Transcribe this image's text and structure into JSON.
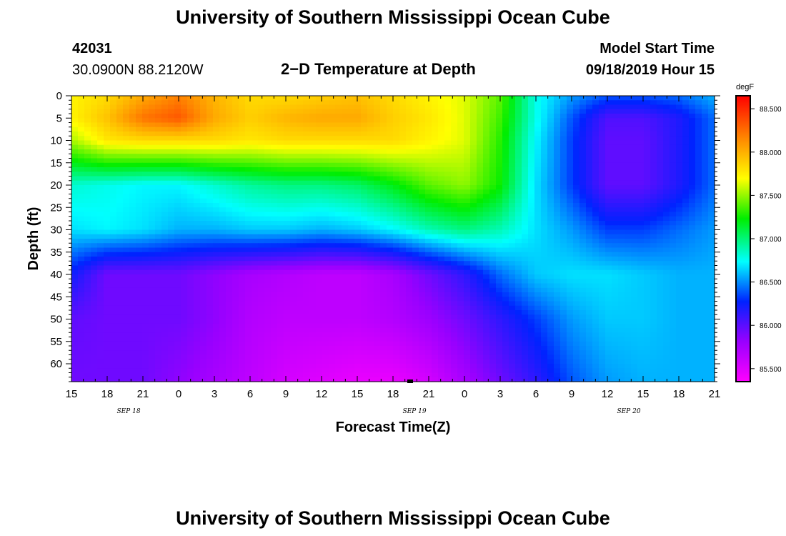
{
  "header": {
    "title_top": "University of Southern Mississippi Ocean Cube",
    "station_id": "42031",
    "location": "30.0900N 88.2120W",
    "plot_title": "2−D Temperature at Depth",
    "model_start_label": "Model Start Time",
    "model_start_value": "09/18/2019 Hour 15",
    "title_bottom": "University of Southern Mississippi Ocean Cube"
  },
  "chart_data": {
    "type": "heatmap",
    "title": "2−D Temperature at Depth",
    "xlabel": "Forecast Time(Z)",
    "ylabel": "Depth (ft)",
    "x_tick_labels": [
      "15",
      "18",
      "21",
      "0",
      "3",
      "6",
      "9",
      "12",
      "15",
      "18",
      "21",
      "0",
      "3",
      "6",
      "9",
      "12",
      "15",
      "18",
      "21"
    ],
    "date_labels": [
      "SEP 18",
      "SEP 19",
      "SEP 20"
    ],
    "y_tick_labels": [
      "0",
      "5",
      "10",
      "15",
      "20",
      "25",
      "30",
      "35",
      "40",
      "45",
      "50",
      "55",
      "60"
    ],
    "ylim": [
      0,
      64
    ],
    "xlim_hours": [
      0,
      54
    ],
    "colorbar": {
      "unit": "degF",
      "range": [
        85.35,
        88.65
      ],
      "tick_labels": [
        "88.500",
        "88.000",
        "87.500",
        "87.000",
        "86.500",
        "86.000",
        "85.500"
      ],
      "tick_values": [
        88.5,
        88.0,
        87.5,
        87.0,
        86.5,
        86.0,
        85.5
      ]
    },
    "grid": false,
    "colors": {
      "magenta": "#ff00ff",
      "purple": "#9900ff",
      "blue": "#0022ff",
      "cyan": "#00ffff",
      "green": "#00ee00",
      "yellow": "#ffff00",
      "orange": "#ff8800",
      "red": "#ff0000"
    },
    "layer_depths_ft": [
      0,
      5,
      10,
      20,
      30,
      40,
      50,
      64
    ],
    "time_hours": [
      0,
      3,
      6,
      9,
      12,
      15,
      18,
      21,
      24,
      27,
      30,
      33,
      36,
      39,
      42,
      45,
      48,
      51,
      54
    ],
    "temperature_degF": [
      [
        87.75,
        87.85,
        88.05,
        88.2,
        88.0,
        87.85,
        87.85,
        87.9,
        87.95,
        87.85,
        87.75,
        87.65,
        87.4,
        86.8,
        86.55,
        86.4,
        86.4,
        86.45,
        86.6
      ],
      [
        87.75,
        87.95,
        88.25,
        88.35,
        88.05,
        87.9,
        88.0,
        88.05,
        88.05,
        87.9,
        87.8,
        87.65,
        87.35,
        86.8,
        86.4,
        86.05,
        86.05,
        86.2,
        86.45
      ],
      [
        87.55,
        87.8,
        87.85,
        87.85,
        87.85,
        87.8,
        87.85,
        87.85,
        87.85,
        87.85,
        87.75,
        87.65,
        87.3,
        86.75,
        86.35,
        86.0,
        86.0,
        86.2,
        86.45
      ],
      [
        86.85,
        86.8,
        86.75,
        86.75,
        86.85,
        86.95,
        87.0,
        87.0,
        87.05,
        87.2,
        87.4,
        87.5,
        87.25,
        86.7,
        86.35,
        86.0,
        86.0,
        86.2,
        86.45
      ],
      [
        86.7,
        86.75,
        86.7,
        86.6,
        86.6,
        86.65,
        86.65,
        86.6,
        86.65,
        86.75,
        86.9,
        87.0,
        86.9,
        86.7,
        86.55,
        86.35,
        86.35,
        86.45,
        86.55
      ],
      [
        86.25,
        85.95,
        85.95,
        85.95,
        85.85,
        85.75,
        85.7,
        85.65,
        85.65,
        85.75,
        85.95,
        86.15,
        86.45,
        86.65,
        86.7,
        86.7,
        86.65,
        86.6,
        86.6
      ],
      [
        86.0,
        85.95,
        85.95,
        85.95,
        85.85,
        85.7,
        85.65,
        85.65,
        85.65,
        85.7,
        85.8,
        85.95,
        86.15,
        86.35,
        86.55,
        86.65,
        86.65,
        86.6,
        86.6
      ],
      [
        85.95,
        85.95,
        85.95,
        85.85,
        85.75,
        85.65,
        85.55,
        85.5,
        85.45,
        85.45,
        85.55,
        85.75,
        85.95,
        86.15,
        86.4,
        86.55,
        86.6,
        86.6,
        86.6
      ]
    ]
  }
}
